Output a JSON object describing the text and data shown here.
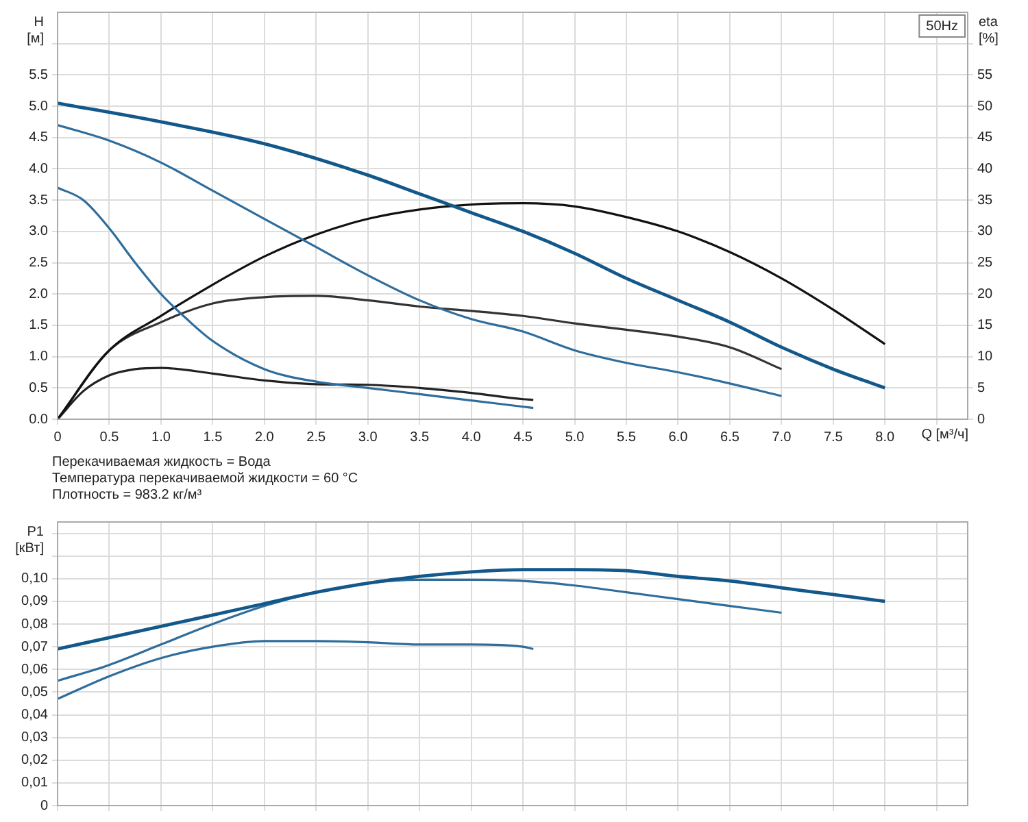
{
  "chart_data": [
    {
      "type": "line",
      "title": "50Hz",
      "ylabel": "H [м]",
      "y2label": "eta [%]",
      "xlabel": "Q [м³/ч]",
      "xlim": [
        0,
        8.8
      ],
      "xticks": [
        0,
        0.5,
        {
          "value": 1,
          "label": "1.0"
        },
        1.5,
        {
          "value": 2,
          "label": "2.0"
        },
        2.5,
        {
          "value": 3,
          "label": "3.0"
        },
        3.5,
        {
          "value": 4,
          "label": "4.0"
        },
        4.5,
        {
          "value": 5,
          "label": "5.0"
        },
        5.5,
        {
          "value": 6,
          "label": "6.0"
        },
        6.5,
        {
          "value": 7,
          "label": "7.0"
        },
        7.5,
        {
          "value": 8,
          "label": "8.0"
        },
        {
          "value": 8.5,
          "label": null
        }
      ],
      "ylim": [
        0,
        6.5
      ],
      "yticks": [
        {
          "value": 0,
          "label": "0.0"
        },
        0.5,
        {
          "value": 1,
          "label": "1.0"
        },
        1.5,
        {
          "value": 2,
          "label": "2.0"
        },
        2.5,
        {
          "value": 3,
          "label": "3.0"
        },
        3.5,
        {
          "value": 4,
          "label": "4.0"
        },
        4.5,
        {
          "value": 5,
          "label": "5.0"
        },
        5.5,
        {
          "value": 6,
          "label": null
        }
      ],
      "y2lim": [
        0,
        65
      ],
      "y2ticks": [
        0,
        5,
        10,
        15,
        20,
        25,
        30,
        35,
        40,
        45,
        50,
        55,
        {
          "value": 60,
          "label": null
        }
      ],
      "grid": true,
      "legend": false,
      "marker": "none",
      "annotations": [
        "Перекачиваемая жидкость = Вода",
        "Температура перекачиваемой жидкости = 60 °C",
        "Плотность = 983.2 кг/м³"
      ],
      "series": [
        {
          "color": "#13588a",
          "x": [
            0,
            1,
            2,
            3,
            3.5,
            4,
            4.5,
            5,
            5.5,
            6,
            6.5,
            7,
            7.5,
            8
          ],
          "values": [
            5.05,
            4.75,
            4.4,
            3.9,
            3.6,
            3.3,
            3.0,
            2.65,
            2.25,
            1.9,
            1.55,
            1.15,
            0.8,
            0.5
          ]
        },
        {
          "color": "#2f6d9c",
          "x": [
            0,
            0.5,
            1,
            1.5,
            2,
            2.5,
            3,
            3.5,
            4,
            4.5,
            5,
            5.5,
            6,
            6.5,
            7
          ],
          "values": [
            4.7,
            4.45,
            4.1,
            3.65,
            3.2,
            2.75,
            2.3,
            1.9,
            1.6,
            1.4,
            1.1,
            0.9,
            0.75,
            0.57,
            0.37
          ]
        },
        {
          "color": "#2f6d9c",
          "x": [
            0,
            0.25,
            0.5,
            0.75,
            1,
            1.25,
            1.5,
            2,
            2.5,
            3,
            3.5,
            4,
            4.5,
            4.6
          ],
          "values": [
            3.7,
            3.5,
            3.05,
            2.5,
            2.0,
            1.6,
            1.25,
            0.8,
            0.6,
            0.5,
            0.4,
            0.3,
            0.2,
            0.18
          ]
        },
        {
          "color": "#111111",
          "axis": "y2",
          "x": [
            0,
            0.5,
            1,
            1.5,
            2,
            2.5,
            3,
            3.5,
            4,
            4.5,
            5,
            5.5,
            6,
            6.5,
            7,
            7.5,
            8
          ],
          "values": [
            0,
            11,
            16.5,
            21.5,
            26,
            29.5,
            32,
            33.5,
            34.3,
            34.5,
            34,
            32.3,
            30,
            26.7,
            22.5,
            17.5,
            12
          ]
        },
        {
          "color": "#333333",
          "axis": "y2",
          "x": [
            0,
            0.5,
            1,
            1.5,
            2,
            2.5,
            3,
            3.5,
            4,
            4.5,
            5,
            5.5,
            6,
            6.5,
            7
          ],
          "values": [
            0,
            11,
            15.5,
            18.5,
            19.5,
            19.7,
            19,
            18,
            17.3,
            16.5,
            15.3,
            14.3,
            13.2,
            11.5,
            8
          ]
        },
        {
          "color": "#222222",
          "axis": "y2",
          "x": [
            0,
            0.25,
            0.5,
            0.75,
            1,
            1.5,
            2,
            2.5,
            3,
            3.5,
            4,
            4.5,
            4.6
          ],
          "values": [
            0,
            4.5,
            7,
            8,
            8.2,
            7.3,
            6.2,
            5.6,
            5.5,
            5,
            4.2,
            3.2,
            3.1
          ]
        }
      ]
    },
    {
      "type": "line",
      "ylabel": "P1 [кВт]",
      "xlim": [
        0,
        8.8
      ],
      "xticks": [
        0,
        0.5,
        1,
        1.5,
        2,
        2.5,
        3,
        3.5,
        4,
        4.5,
        5,
        5.5,
        6,
        6.5,
        7,
        7.5,
        8,
        8.5
      ],
      "ylim": [
        0,
        0.125
      ],
      "yticks": [
        0,
        {
          "value": 0.01,
          "label": "0,01"
        },
        {
          "value": 0.02,
          "label": "0,02"
        },
        {
          "value": 0.03,
          "label": "0,03"
        },
        {
          "value": 0.04,
          "label": "0,04"
        },
        {
          "value": 0.05,
          "label": "0,05"
        },
        {
          "value": 0.06,
          "label": "0,06"
        },
        {
          "value": 0.07,
          "label": "0,07"
        },
        {
          "value": 0.08,
          "label": "0,08"
        },
        {
          "value": 0.09,
          "label": "0,09"
        },
        {
          "value": 0.1,
          "label": "0,10"
        },
        {
          "value": 0.11,
          "label": null
        },
        {
          "value": 0.12,
          "label": null
        }
      ],
      "tick_labels": "y",
      "grid": true,
      "legend": false,
      "marker": "none",
      "series": [
        {
          "color": "#13588a",
          "x": [
            0,
            0.5,
            1,
            1.5,
            2,
            2.5,
            3,
            3.5,
            4,
            4.5,
            5,
            5.5,
            6,
            6.5,
            7,
            7.5,
            8
          ],
          "values": [
            0.069,
            0.074,
            0.079,
            0.084,
            0.089,
            0.094,
            0.098,
            0.101,
            0.103,
            0.104,
            0.104,
            0.1035,
            0.101,
            0.099,
            0.096,
            0.093,
            0.09
          ]
        },
        {
          "color": "#2f6d9c",
          "x": [
            0,
            0.5,
            1,
            1.5,
            2,
            2.5,
            3,
            3.5,
            4,
            4.5,
            5,
            5.5,
            6,
            6.5,
            7
          ],
          "values": [
            0.055,
            0.062,
            0.071,
            0.08,
            0.088,
            0.094,
            0.098,
            0.0995,
            0.0995,
            0.099,
            0.097,
            0.094,
            0.091,
            0.088,
            0.085
          ]
        },
        {
          "color": "#2f6d9c",
          "x": [
            0,
            0.5,
            1,
            1.5,
            2,
            2.5,
            3,
            3.5,
            4,
            4.5,
            4.6
          ],
          "values": [
            0.047,
            0.057,
            0.065,
            0.07,
            0.0725,
            0.0725,
            0.072,
            0.071,
            0.071,
            0.07,
            0.069
          ]
        }
      ]
    }
  ]
}
